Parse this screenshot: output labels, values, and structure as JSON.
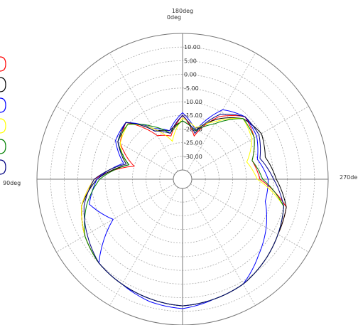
{
  "chart_data": {
    "type": "polar-line",
    "angle_labels": [
      {
        "text": "180deg",
        "angle": 180
      },
      {
        "text": "0deg",
        "angle": 0
      },
      {
        "text": "90deg",
        "angle": 90
      },
      {
        "text": "270de",
        "angle": 270
      }
    ],
    "radial_ticks": [
      {
        "value": 10,
        "text": "10.00"
      },
      {
        "value": 5,
        "text": "5.00"
      },
      {
        "value": 0,
        "text": "0.00"
      },
      {
        "value": -5,
        "text": "-5.00"
      },
      {
        "value": -10,
        "text": "-10.00"
      },
      {
        "value": -15,
        "text": "-15.00"
      },
      {
        "value": -20,
        "text": "-20.00"
      },
      {
        "value": -25,
        "text": "-25.00"
      },
      {
        "value": -30,
        "text": "-30.00"
      }
    ],
    "r_range": [
      -35,
      15
    ],
    "angular_grid_step_deg": 30,
    "legend_colors": [
      "#ff0000",
      "#000000",
      "#0000ff",
      "#ffff00",
      "#008000",
      "#000080"
    ],
    "series": [
      {
        "color": "#ff0000",
        "points": [
          [
            0,
            8
          ],
          [
            15,
            7
          ],
          [
            30,
            6
          ],
          [
            45,
            5
          ],
          [
            60,
            3
          ],
          [
            75,
            0
          ],
          [
            90,
            -6
          ],
          [
            105,
            -20
          ],
          [
            120,
            -12
          ],
          [
            135,
            -9
          ],
          [
            150,
            -20
          ],
          [
            165,
            -22
          ],
          [
            180,
            -15
          ],
          [
            195,
            -22
          ],
          [
            210,
            -12
          ],
          [
            225,
            -6
          ],
          [
            240,
            -8
          ],
          [
            255,
            -12
          ],
          [
            270,
            -10
          ],
          [
            285,
            1
          ],
          [
            300,
            2
          ],
          [
            315,
            4
          ],
          [
            330,
            6
          ],
          [
            345,
            7
          ]
        ]
      },
      {
        "color": "#000000",
        "points": [
          [
            0,
            8
          ],
          [
            15,
            7
          ],
          [
            30,
            6
          ],
          [
            45,
            5
          ],
          [
            60,
            3
          ],
          [
            75,
            0
          ],
          [
            90,
            -7
          ],
          [
            105,
            -18
          ],
          [
            120,
            -11
          ],
          [
            135,
            -9
          ],
          [
            150,
            -18
          ],
          [
            165,
            -20
          ],
          [
            180,
            -17
          ],
          [
            195,
            -20
          ],
          [
            210,
            -13
          ],
          [
            225,
            -7
          ],
          [
            240,
            -5
          ],
          [
            255,
            -7
          ],
          [
            270,
            -4
          ],
          [
            285,
            1
          ],
          [
            300,
            2
          ],
          [
            315,
            4
          ],
          [
            330,
            6
          ],
          [
            345,
            7
          ]
        ]
      },
      {
        "color": "#0000ff",
        "points": [
          [
            0,
            9
          ],
          [
            15,
            8
          ],
          [
            30,
            6
          ],
          [
            45,
            5
          ],
          [
            60,
            -9
          ],
          [
            75,
            -3
          ],
          [
            90,
            -7
          ],
          [
            105,
            -16
          ],
          [
            120,
            -10
          ],
          [
            135,
            -9
          ],
          [
            150,
            -17
          ],
          [
            165,
            -20
          ],
          [
            180,
            -14
          ],
          [
            195,
            -20
          ],
          [
            210,
            -9
          ],
          [
            225,
            -6
          ],
          [
            240,
            -7
          ],
          [
            255,
            -10
          ],
          [
            270,
            -7
          ],
          [
            285,
            -7
          ],
          [
            300,
            -3
          ],
          [
            315,
            1
          ],
          [
            330,
            6
          ],
          [
            345,
            7
          ]
        ]
      },
      {
        "color": "#ffff00",
        "points": [
          [
            0,
            8
          ],
          [
            15,
            7
          ],
          [
            30,
            6
          ],
          [
            45,
            5
          ],
          [
            60,
            3
          ],
          [
            75,
            0
          ],
          [
            90,
            -6
          ],
          [
            105,
            -17
          ],
          [
            120,
            -12
          ],
          [
            135,
            -10
          ],
          [
            150,
            -17
          ],
          [
            165,
            -24
          ],
          [
            180,
            -16
          ],
          [
            195,
            -19
          ],
          [
            210,
            -14
          ],
          [
            225,
            -7
          ],
          [
            240,
            -9
          ],
          [
            255,
            -14
          ],
          [
            270,
            -11
          ],
          [
            285,
            0
          ],
          [
            300,
            2
          ],
          [
            315,
            4
          ],
          [
            330,
            6
          ],
          [
            345,
            7
          ]
        ]
      },
      {
        "color": "#008000",
        "points": [
          [
            0,
            8
          ],
          [
            15,
            7
          ],
          [
            30,
            6
          ],
          [
            45,
            5
          ],
          [
            60,
            3
          ],
          [
            75,
            -2
          ],
          [
            90,
            -8
          ],
          [
            105,
            -18
          ],
          [
            120,
            -11
          ],
          [
            135,
            -10
          ],
          [
            150,
            -16
          ],
          [
            165,
            -21
          ],
          [
            180,
            -17
          ],
          [
            195,
            -20
          ],
          [
            210,
            -15
          ],
          [
            225,
            -7
          ],
          [
            240,
            -8
          ],
          [
            255,
            -12
          ],
          [
            270,
            -9
          ],
          [
            285,
            0
          ],
          [
            300,
            2
          ],
          [
            315,
            4
          ],
          [
            330,
            6
          ],
          [
            345,
            7
          ]
        ]
      },
      {
        "color": "#000080",
        "points": [
          [
            0,
            8
          ],
          [
            15,
            7
          ],
          [
            30,
            6
          ],
          [
            45,
            5
          ],
          [
            60,
            2
          ],
          [
            75,
            -1
          ],
          [
            90,
            -6
          ],
          [
            105,
            -17
          ],
          [
            120,
            -11
          ],
          [
            135,
            -9
          ],
          [
            150,
            -18
          ],
          [
            165,
            -21
          ],
          [
            180,
            -15
          ],
          [
            195,
            -21
          ],
          [
            210,
            -11
          ],
          [
            225,
            -6
          ],
          [
            240,
            -6
          ],
          [
            255,
            -9
          ],
          [
            270,
            -5
          ],
          [
            285,
            0
          ],
          [
            300,
            2
          ],
          [
            315,
            4
          ],
          [
            330,
            6
          ],
          [
            345,
            7
          ]
        ]
      }
    ]
  }
}
